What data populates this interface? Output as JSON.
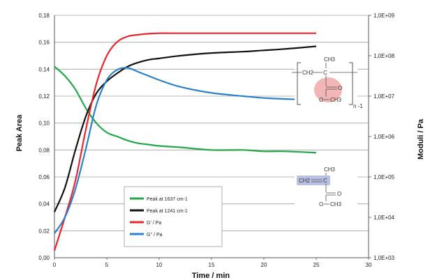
{
  "chart_data": {
    "type": "line",
    "xlabel": "Time / min",
    "ylabel_left": "Peak Area",
    "ylabel_right": "Moduli / Pa",
    "xlim": [
      0,
      30
    ],
    "ylim_left": [
      0,
      0.18
    ],
    "ylim_right_log10": [
      3,
      9
    ],
    "grid": true,
    "legend_position": "bottom-left",
    "x_ticks": [
      "0",
      "5",
      "10",
      "15",
      "20",
      "25",
      "30"
    ],
    "y_left_ticks": [
      "0,00",
      "0,02",
      "0,04",
      "0,06",
      "0,08",
      "0,10",
      "0,12",
      "0,14",
      "0,16",
      "0,18"
    ],
    "y_right_ticks": [
      "1,0E+03",
      "1,0E+04",
      "1,0E+05",
      "1,0E+06",
      "1,0E+07",
      "1,0E+08",
      "1,0E+09"
    ],
    "series": [
      {
        "name": "Peak at 1637 cm-1",
        "color": "#22a84a",
        "axis": "left",
        "x": [
          0,
          1,
          2,
          3,
          4,
          5,
          6,
          7,
          8,
          9,
          10,
          12,
          15,
          18,
          20,
          22,
          25
        ],
        "y": [
          0.142,
          0.135,
          0.125,
          0.111,
          0.1,
          0.093,
          0.09,
          0.087,
          0.085,
          0.084,
          0.083,
          0.082,
          0.08,
          0.08,
          0.079,
          0.079,
          0.078
        ]
      },
      {
        "name": "Peak at 1241 cm-1",
        "color": "#111111",
        "axis": "left",
        "x": [
          0,
          1,
          2,
          3,
          4,
          5,
          6,
          7,
          8,
          9,
          10,
          12,
          15,
          18,
          20,
          22,
          25
        ],
        "y": [
          0.034,
          0.052,
          0.08,
          0.105,
          0.122,
          0.131,
          0.137,
          0.142,
          0.145,
          0.147,
          0.148,
          0.15,
          0.152,
          0.153,
          0.154,
          0.155,
          0.157
        ]
      },
      {
        "name": "G' / Pa",
        "color": "#e8262b",
        "axis": "right",
        "x": [
          0,
          1,
          2,
          3,
          4,
          5,
          6,
          7,
          8,
          9,
          10,
          12,
          15,
          20,
          25
        ],
        "y": [
          1500.0,
          10000.0,
          80000.0,
          1500000.0,
          20000000.0,
          100000000.0,
          220000000.0,
          300000000.0,
          330000000.0,
          350000000.0,
          360000000.0,
          360000000.0,
          360000000.0,
          360000000.0,
          360000000.0
        ]
      },
      {
        "name": "G'' / Pa",
        "color": "#2c80c8",
        "axis": "right",
        "x": [
          0,
          1,
          2,
          3,
          4,
          5,
          6,
          7,
          8,
          10,
          12,
          15,
          18,
          20,
          22,
          25
        ],
        "y": [
          4000.0,
          10000.0,
          50000.0,
          500000.0,
          6000000.0,
          25000000.0,
          45000000.0,
          50000000.0,
          40000000.0,
          25000000.0,
          17000000.0,
          12000000.0,
          10000000.0,
          9000000.0,
          8500000.0,
          8000000.0
        ]
      }
    ],
    "structures": {
      "polymer": {
        "ch3": "CH3",
        "ch2": "CH2",
        "c_atom": "C",
        "oxygen_double": "O",
        "ester_oxygen": "O",
        "ester_methyl": "CH3",
        "repeat_index": "n -1"
      },
      "monomer": {
        "ch3": "CH3",
        "ch2": "CH2",
        "c_atom": "C",
        "oxygen_double": "O",
        "ester_oxygen": "O",
        "ester_methyl": "CH3"
      }
    }
  }
}
